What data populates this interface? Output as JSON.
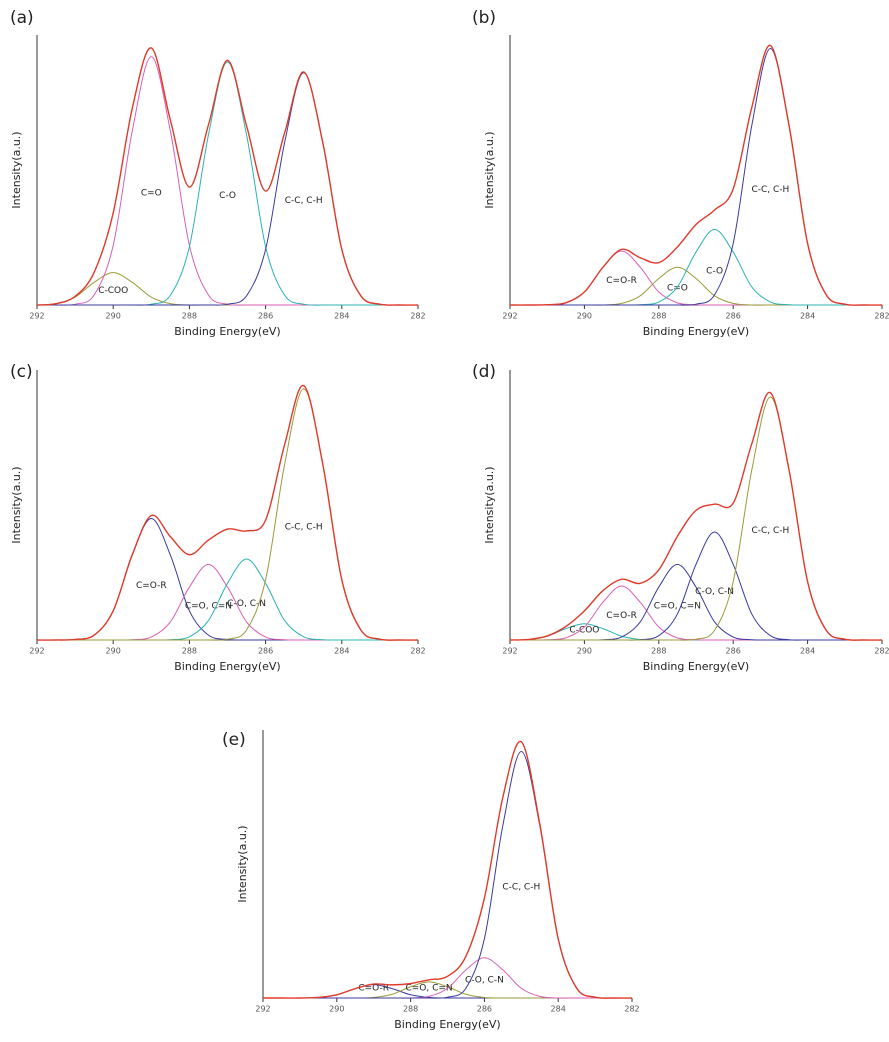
{
  "chart_data": [
    {
      "type": "line",
      "title": "(a)",
      "xlabel": "Binding Energy(eV)",
      "ylabel": "Intensity(a.u.)",
      "xlim": [
        292,
        282
      ],
      "ylim": [
        0,
        100
      ],
      "xticks": [
        292,
        290,
        288,
        286,
        284,
        282
      ],
      "x": [
        292,
        291.5,
        291,
        290.5,
        290,
        289.5,
        289,
        288.5,
        288,
        287.5,
        287,
        286.5,
        286,
        285.5,
        285,
        284.5,
        284,
        283.5,
        283,
        282.5,
        282
      ],
      "series": [
        {
          "name": "C-COO",
          "color": "#9a9a3a",
          "values": [
            0,
            0.5,
            2.9,
            8.4,
            12,
            8.4,
            2.9,
            0.5,
            0,
            0,
            0,
            0,
            0,
            0,
            0,
            0,
            0,
            0,
            0,
            0,
            0
          ]
        },
        {
          "name": "C=O",
          "color": "#d85fb5",
          "values": [
            0,
            0,
            0.3,
            3.7,
            22.1,
            64.4,
            92,
            64.4,
            22.1,
            3.7,
            0.3,
            0,
            0,
            0,
            0,
            0,
            0,
            0,
            0,
            0,
            0
          ]
        },
        {
          "name": "C-O",
          "color": "#2bb3b3",
          "values": [
            0,
            0,
            0,
            0,
            0,
            0,
            0.3,
            3.6,
            21.6,
            63,
            90,
            63,
            21.6,
            3.6,
            0.3,
            0,
            0,
            0,
            0,
            0,
            0
          ]
        },
        {
          "name": "C-C, C-H",
          "color": "#3a3aa0",
          "values": [
            0,
            0,
            0,
            0,
            0,
            0,
            0,
            0,
            0,
            0,
            0.3,
            3.4,
            20.6,
            60.2,
            86,
            60.2,
            20.6,
            3.4,
            0.3,
            0,
            0
          ]
        },
        {
          "color": "#e03a2a",
          "values": [
            0,
            0.5,
            3.2,
            12.1,
            34.1,
            72.8,
            95.2,
            68.5,
            43.7,
            66.7,
            90.6,
            66.4,
            42.2,
            63.8,
            86.3,
            60.2,
            20.6,
            3.4,
            0.3,
            0,
            0
          ]
        }
      ]
    },
    {
      "type": "line",
      "title": "(b)",
      "xlabel": "Binding Energy(eV)",
      "ylabel": "Intensity(a.u.)",
      "xlim": [
        292,
        282
      ],
      "ylim": [
        0,
        100
      ],
      "xticks": [
        292,
        290,
        288,
        286,
        284,
        282
      ],
      "x": [
        292,
        291.5,
        291,
        290.5,
        290,
        289.5,
        289,
        288.5,
        288,
        287.5,
        287,
        286.5,
        286,
        285.5,
        285,
        284.5,
        284,
        283.5,
        283,
        282.5,
        282
      ],
      "series": [
        {
          "name": "C=O-R",
          "color": "#d85fb5",
          "values": [
            0,
            0,
            0.1,
            0.8,
            4.8,
            14,
            20,
            14,
            4.8,
            0.8,
            0.1,
            0,
            0,
            0,
            0,
            0,
            0,
            0,
            0,
            0,
            0
          ]
        },
        {
          "name": "C=O",
          "color": "#9a9a3a",
          "values": [
            0,
            0,
            0,
            0,
            0,
            0,
            0.6,
            3.4,
            9.8,
            14,
            9.8,
            3.4,
            0.6,
            0,
            0,
            0,
            0,
            0,
            0,
            0,
            0
          ]
        },
        {
          "name": "C-O",
          "color": "#2bb3b3",
          "values": [
            0,
            0,
            0,
            0,
            0,
            0,
            0,
            0.1,
            1.1,
            6.7,
            19.6,
            28,
            19.6,
            6.7,
            1.1,
            0.1,
            0,
            0,
            0,
            0,
            0
          ]
        },
        {
          "name": "C-C, C-H",
          "color": "#3a3aa0",
          "values": [
            0,
            0,
            0,
            0,
            0,
            0,
            0,
            0,
            0,
            0,
            0.3,
            3.8,
            22.8,
            66.5,
            95,
            66.5,
            22.8,
            3.8,
            0.3,
            0,
            0
          ]
        },
        {
          "color": "#e03a2a",
          "values": [
            0,
            0,
            0.1,
            0.8,
            4.8,
            14,
            20.6,
            17.5,
            15.7,
            21.5,
            29.8,
            35.2,
            43,
            73.2,
            96.1,
            66.6,
            22.8,
            3.8,
            0.3,
            0,
            0
          ]
        }
      ]
    },
    {
      "type": "line",
      "title": "(c)",
      "xlabel": "Binding Energy(eV)",
      "ylabel": "Intensity(a.u.)",
      "xlim": [
        292,
        282
      ],
      "ylim": [
        0,
        100
      ],
      "xticks": [
        292,
        290,
        288,
        286,
        284,
        282
      ],
      "x": [
        292,
        291.5,
        291,
        290.5,
        290,
        289.5,
        289,
        288.5,
        288,
        287.5,
        287,
        286.5,
        286,
        285.5,
        285,
        284.5,
        284,
        283.5,
        283,
        282.5,
        282
      ],
      "series": [
        {
          "name": "C=O-R",
          "color": "#3a3aa0",
          "values": [
            0,
            0,
            0.2,
            1.8,
            10.8,
            31.5,
            45,
            31.5,
            10.8,
            1.8,
            0.2,
            0,
            0,
            0,
            0,
            0,
            0,
            0,
            0,
            0,
            0
          ]
        },
        {
          "name": "C=O, C=N",
          "color": "#d85fb5",
          "values": [
            0,
            0,
            0,
            0,
            0,
            0.1,
            1.1,
            6.7,
            19.6,
            28,
            19.6,
            6.7,
            1.1,
            0.1,
            0,
            0,
            0,
            0,
            0,
            0,
            0
          ]
        },
        {
          "name": "C-O, C-N",
          "color": "#2bb3b3",
          "values": [
            0,
            0,
            0,
            0,
            0,
            0,
            0,
            0.1,
            1.2,
            7.2,
            21,
            30,
            21,
            7.2,
            1.2,
            0.1,
            0,
            0,
            0,
            0,
            0
          ]
        },
        {
          "name": "C-C, C-H",
          "color": "#9a9a3a",
          "values": [
            0,
            0,
            0,
            0,
            0,
            0,
            0,
            0,
            0,
            0,
            0.3,
            3.7,
            22.3,
            65.1,
            93,
            65.1,
            22.3,
            3.7,
            0.3,
            0,
            0
          ]
        },
        {
          "color": "#e03a2a",
          "values": [
            0,
            0,
            0.2,
            1.8,
            10.8,
            31.6,
            46.1,
            38.3,
            31.6,
            37,
            41.1,
            40.4,
            44.4,
            72.4,
            94.2,
            65.2,
            22.3,
            3.7,
            0.3,
            0,
            0
          ]
        }
      ]
    },
    {
      "type": "line",
      "title": "(d)",
      "xlabel": "Binding Energy(eV)",
      "ylabel": "Intensity(a.u.)",
      "xlim": [
        292,
        282
      ],
      "ylim": [
        0,
        100
      ],
      "xticks": [
        292,
        290,
        288,
        286,
        284,
        282
      ],
      "x": [
        292,
        291.5,
        291,
        290.5,
        290,
        289.5,
        289,
        288.5,
        288,
        287.5,
        287,
        286.5,
        286,
        285.5,
        285,
        284.5,
        284,
        283.5,
        283,
        282.5,
        282
      ],
      "series": [
        {
          "name": "C-COO",
          "color": "#2bb3b3",
          "values": [
            0,
            0.2,
            1.4,
            4.2,
            6,
            4.2,
            1.4,
            0.2,
            0,
            0,
            0,
            0,
            0,
            0,
            0,
            0,
            0,
            0,
            0,
            0,
            0
          ]
        },
        {
          "name": "C=O-R",
          "color": "#d85fb5",
          "values": [
            0,
            0,
            0.1,
            0.8,
            4.8,
            14,
            20,
            14,
            4.8,
            0.8,
            0.1,
            0,
            0,
            0,
            0,
            0,
            0,
            0,
            0,
            0,
            0
          ]
        },
        {
          "name": "C=O, C=N",
          "color": "#3a3aa0",
          "values": [
            0,
            0,
            0,
            0,
            0,
            0.1,
            1.1,
            6.7,
            19.6,
            28,
            19.6,
            6.7,
            1.1,
            0.1,
            0,
            0,
            0,
            0,
            0,
            0,
            0
          ]
        },
        {
          "name": "C-O, C-N",
          "color": "#3a3aa0",
          "values": [
            0,
            0,
            0,
            0,
            0,
            0,
            0,
            0.1,
            1.6,
            9.6,
            28,
            40,
            28,
            9.6,
            1.6,
            0.1,
            0,
            0,
            0,
            0,
            0
          ]
        },
        {
          "name": "C-C, C-H",
          "color": "#9a9a3a",
          "values": [
            0,
            0,
            0,
            0,
            0,
            0,
            0,
            0,
            0,
            0,
            0.3,
            3.6,
            21.6,
            63,
            90,
            63,
            21.6,
            3.6,
            0.3,
            0,
            0
          ]
        },
        {
          "color": "#e03a2a",
          "values": [
            0,
            0.2,
            1.5,
            5,
            10.8,
            18.3,
            22.5,
            21,
            26,
            38.4,
            48,
            50.3,
            50.7,
            72.7,
            91.6,
            63.1,
            21.6,
            3.6,
            0.3,
            0,
            0
          ]
        }
      ]
    },
    {
      "type": "line",
      "title": "(e)",
      "xlabel": "Binding Energy(eV)",
      "ylabel": "Intensity(a.u.)",
      "xlim": [
        292,
        282
      ],
      "ylim": [
        0,
        100
      ],
      "xticks": [
        292,
        290,
        288,
        286,
        284,
        282
      ],
      "x": [
        292,
        291.5,
        291,
        290.5,
        290,
        289.5,
        289,
        288.5,
        288,
        287.5,
        287,
        286.5,
        286,
        285.5,
        285,
        284.5,
        284,
        283.5,
        283,
        282.5,
        282
      ],
      "series": [
        {
          "name": "C=O-R",
          "color": "#3a3aa0",
          "values": [
            0,
            0,
            0,
            0.2,
            1.2,
            3.5,
            5,
            3.5,
            1.2,
            0.2,
            0,
            0,
            0,
            0,
            0,
            0,
            0,
            0,
            0,
            0,
            0
          ]
        },
        {
          "name": "C=O, C=N",
          "color": "#9a9a3a",
          "values": [
            0,
            0,
            0,
            0,
            0,
            0,
            0.2,
            1.4,
            4.2,
            6,
            4.2,
            1.4,
            0.2,
            0,
            0,
            0,
            0,
            0,
            0,
            0,
            0
          ]
        },
        {
          "name": "C-O, C-N",
          "color": "#d85fb5",
          "values": [
            0,
            0,
            0,
            0,
            0,
            0,
            0,
            0,
            0,
            0.6,
            3.6,
            10.5,
            15,
            10.5,
            3.6,
            0.6,
            0,
            0,
            0,
            0,
            0
          ]
        },
        {
          "name": "C-C, C-H",
          "color": "#3a3aa0",
          "values": [
            0,
            0,
            0,
            0,
            0,
            0,
            0,
            0,
            0,
            0,
            0.3,
            3.7,
            22.1,
            64.4,
            92,
            64.4,
            22.1,
            3.7,
            0.3,
            0,
            0
          ]
        },
        {
          "color": "#e03a2a",
          "values": [
            0,
            0,
            0,
            0.2,
            1.2,
            3.5,
            5.2,
            4.9,
            5.4,
            6.8,
            8.1,
            15.6,
            37.3,
            74.9,
            95.6,
            65,
            22.1,
            3.7,
            0.3,
            0,
            0
          ]
        }
      ]
    }
  ]
}
